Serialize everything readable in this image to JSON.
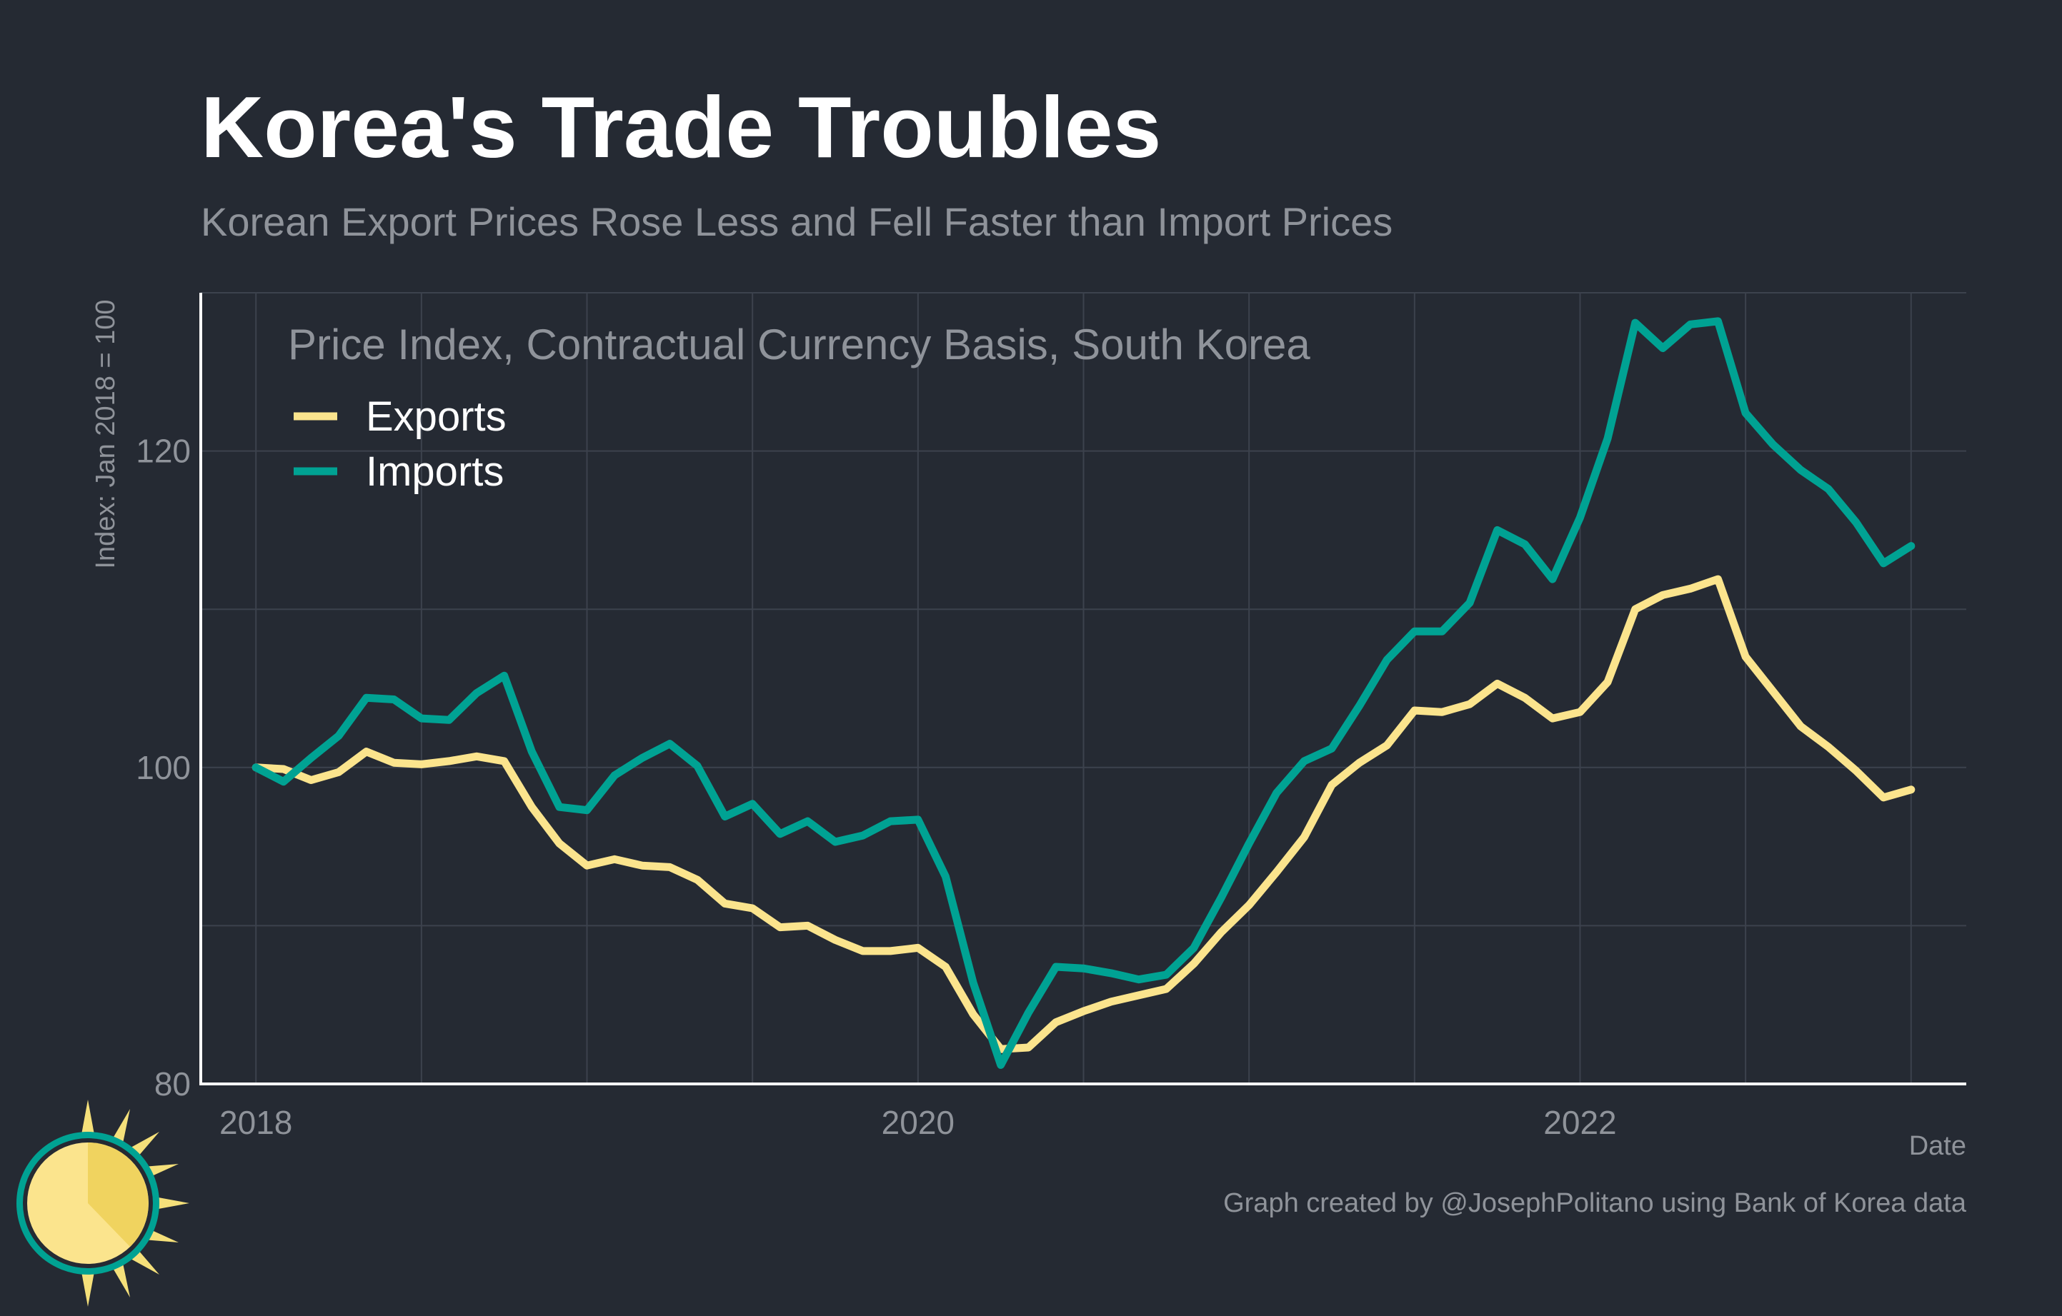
{
  "header": {
    "title": "Korea's Trade Troubles",
    "subtitle": "Korean Export Prices Rose Less and Fell Faster than Import Prices"
  },
  "footer": {
    "caption": "Graph created by @JosephPolitano using Bank of Korea data"
  },
  "colors": {
    "background": "#252a33",
    "grid": "#3c424d",
    "axis": "#ffffff",
    "muted_text": "#8f939a",
    "exports": "#fbe48d",
    "imports": "#00a293"
  },
  "chart_data": {
    "type": "line",
    "title": "Price Index, Contractual Currency Basis, South Korea",
    "xlabel": "Date",
    "ylabel": "Index: Jan 2018 = 100",
    "xlim": [
      "2017-11",
      "2023-03"
    ],
    "ylim": [
      80,
      130
    ],
    "x_ticks": [
      "2018",
      "2020",
      "2022"
    ],
    "y_ticks": [
      80,
      100,
      120
    ],
    "grid": true,
    "legend_position": "top-left",
    "x": [
      "2018-01",
      "2018-02",
      "2018-03",
      "2018-04",
      "2018-05",
      "2018-06",
      "2018-07",
      "2018-08",
      "2018-09",
      "2018-10",
      "2018-11",
      "2018-12",
      "2019-01",
      "2019-02",
      "2019-03",
      "2019-04",
      "2019-05",
      "2019-06",
      "2019-07",
      "2019-08",
      "2019-09",
      "2019-10",
      "2019-11",
      "2019-12",
      "2020-01",
      "2020-02",
      "2020-03",
      "2020-04",
      "2020-05",
      "2020-06",
      "2020-07",
      "2020-08",
      "2020-09",
      "2020-10",
      "2020-11",
      "2020-12",
      "2021-01",
      "2021-02",
      "2021-03",
      "2021-04",
      "2021-05",
      "2021-06",
      "2021-07",
      "2021-08",
      "2021-09",
      "2021-10",
      "2021-11",
      "2021-12",
      "2022-01",
      "2022-02",
      "2022-03",
      "2022-04",
      "2022-05",
      "2022-06",
      "2022-07",
      "2022-08",
      "2022-09",
      "2022-10",
      "2022-11",
      "2022-12",
      "2023-01"
    ],
    "series": [
      {
        "name": "Exports",
        "color": "#fbe48d",
        "values": [
          100.0,
          99.9,
          99.2,
          99.7,
          101.0,
          100.3,
          100.2,
          100.4,
          100.7,
          100.4,
          97.5,
          95.2,
          93.8,
          94.2,
          93.8,
          93.7,
          92.9,
          91.4,
          91.1,
          89.9,
          90.0,
          89.1,
          88.4,
          88.4,
          88.6,
          87.4,
          84.4,
          82.2,
          82.3,
          83.9,
          84.6,
          85.2,
          85.6,
          86.0,
          87.6,
          89.6,
          91.3,
          93.4,
          95.6,
          98.9,
          100.3,
          101.4,
          103.6,
          103.5,
          104.0,
          105.3,
          104.4,
          103.1,
          103.5,
          105.4,
          110.0,
          110.9,
          111.3,
          111.9,
          107.0,
          104.8,
          102.6,
          101.3,
          99.8,
          98.1,
          98.6
        ]
      },
      {
        "name": "Imports",
        "color": "#00a293",
        "values": [
          100.0,
          99.1,
          100.6,
          102.0,
          104.4,
          104.3,
          103.1,
          103.0,
          104.7,
          105.8,
          101.0,
          97.5,
          97.3,
          99.5,
          100.6,
          101.5,
          100.1,
          96.9,
          97.7,
          95.8,
          96.6,
          95.3,
          95.7,
          96.6,
          96.7,
          93.1,
          86.4,
          81.2,
          84.5,
          87.4,
          87.3,
          87.0,
          86.6,
          86.9,
          88.6,
          91.8,
          95.2,
          98.4,
          100.4,
          101.2,
          103.9,
          106.8,
          108.6,
          108.6,
          110.4,
          115.0,
          114.1,
          111.9,
          115.8,
          120.8,
          128.1,
          126.5,
          128.0,
          128.2,
          122.4,
          120.4,
          118.8,
          117.6,
          115.5,
          112.9,
          114.0
        ]
      }
    ]
  }
}
